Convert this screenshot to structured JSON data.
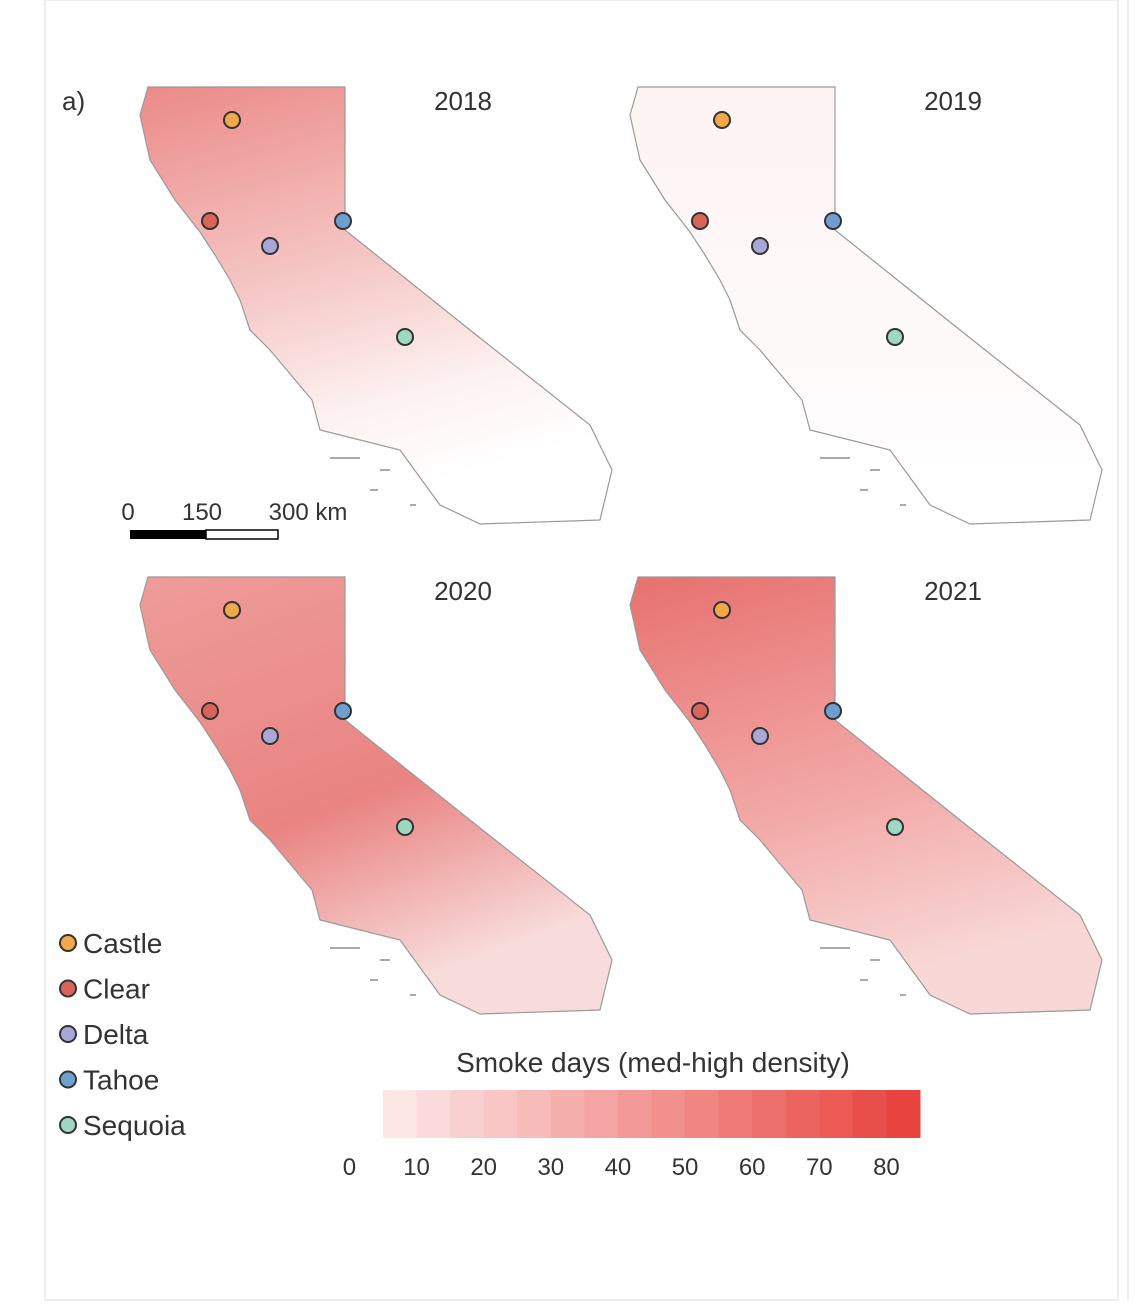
{
  "panel_label": "a)",
  "maps": [
    {
      "year": "2018"
    },
    {
      "year": "2019"
    },
    {
      "year": "2020"
    },
    {
      "year": "2021"
    }
  ],
  "scale_bar": {
    "labels": [
      "0",
      "150",
      "300 km"
    ]
  },
  "sites": [
    {
      "name": "Castle",
      "color": "#f0a84a"
    },
    {
      "name": "Clear",
      "color": "#d9645a"
    },
    {
      "name": "Delta",
      "color": "#a9a6d8"
    },
    {
      "name": "Tahoe",
      "color": "#6f9fd0"
    },
    {
      "name": "Sequoia",
      "color": "#9fd8c0"
    }
  ],
  "colorbar": {
    "title": "Smoke days (med-high density)",
    "lim": [
      5,
      85
    ],
    "steps": 16,
    "low_color": "#fce6e6",
    "high_color": "#e8443f",
    "ticks": [
      0,
      10,
      20,
      30,
      40,
      50,
      60,
      70,
      80
    ]
  }
}
